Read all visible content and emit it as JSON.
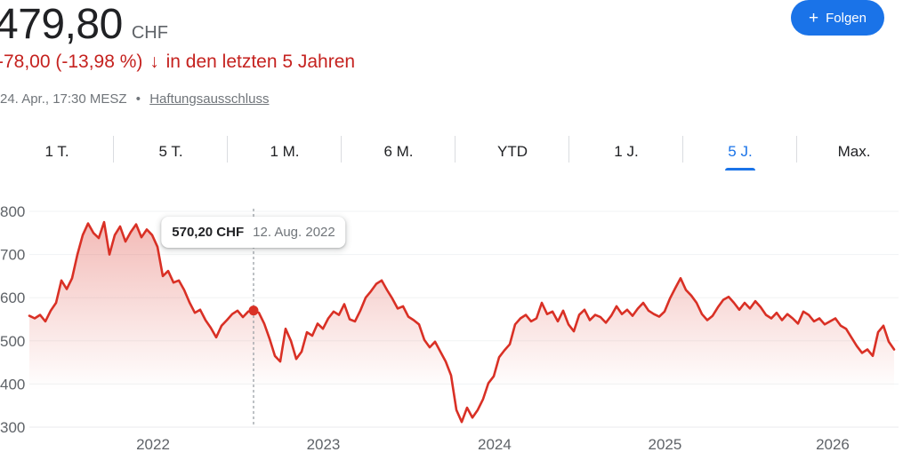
{
  "header": {
    "price": "479,80",
    "currency": "CHF",
    "change_text": "-78,00 (-13,98 %)",
    "change_arrow": "↓",
    "change_suffix": "in den letzten 5 Jahren",
    "date_line": "24. Apr., 17:30 MESZ",
    "separator": "•",
    "disclaimer": "Haftungsausschluss",
    "follow_button": {
      "icon": "+",
      "label": "Folgen"
    },
    "accent_color": "#1a73e8",
    "negative_color": "#c5221f"
  },
  "tabs": [
    {
      "label": "1 T.",
      "selected": false
    },
    {
      "label": "5 T.",
      "selected": false
    },
    {
      "label": "1 M.",
      "selected": false
    },
    {
      "label": "6 M.",
      "selected": false
    },
    {
      "label": "YTD",
      "selected": false
    },
    {
      "label": "1 J.",
      "selected": false
    },
    {
      "label": "5 J.",
      "selected": true
    },
    {
      "label": "Max.",
      "selected": false
    }
  ],
  "tooltip": {
    "price": "570,20 CHF",
    "date": "12. Aug. 2022"
  },
  "chart_data": {
    "type": "area",
    "title": "",
    "xlabel": "",
    "ylabel": "CHF",
    "ylim": [
      300,
      800
    ],
    "y_ticks": [
      300,
      400,
      500,
      600,
      700,
      800
    ],
    "x_ticks": [
      {
        "label": "2022",
        "pos": 0.143
      },
      {
        "label": "2023",
        "pos": 0.34
      },
      {
        "label": "2024",
        "pos": 0.538
      },
      {
        "label": "2025",
        "pos": 0.735
      },
      {
        "label": "2026",
        "pos": 0.929
      }
    ],
    "grid": true,
    "legend": "none",
    "line_color": "#d93025",
    "marker": {
      "index": 42,
      "value": 570.2,
      "price_label": "570,20 CHF",
      "date_label": "12. Aug. 2022"
    },
    "values": [
      558,
      552,
      560,
      545,
      570,
      588,
      640,
      620,
      645,
      700,
      745,
      772,
      750,
      738,
      775,
      700,
      745,
      765,
      730,
      752,
      770,
      740,
      758,
      745,
      718,
      650,
      662,
      635,
      640,
      618,
      589,
      565,
      572,
      548,
      530,
      508,
      535,
      548,
      562,
      570,
      555,
      568,
      570.2,
      565,
      540,
      505,
      465,
      452,
      528,
      500,
      458,
      475,
      520,
      512,
      540,
      528,
      552,
      568,
      560,
      585,
      550,
      545,
      570,
      600,
      615,
      632,
      640,
      618,
      598,
      575,
      580,
      556,
      548,
      538,
      502,
      485,
      498,
      475,
      452,
      420,
      340,
      312,
      345,
      322,
      340,
      365,
      402,
      418,
      462,
      478,
      492,
      538,
      552,
      560,
      545,
      552,
      588,
      562,
      568,
      545,
      570,
      538,
      522,
      560,
      572,
      548,
      560,
      555,
      542,
      558,
      580,
      562,
      572,
      558,
      575,
      588,
      570,
      562,
      556,
      568,
      598,
      622,
      645,
      618,
      605,
      588,
      562,
      548,
      558,
      578,
      595,
      602,
      588,
      572,
      588,
      575,
      592,
      578,
      560,
      552,
      565,
      548,
      562,
      552,
      540,
      568,
      560,
      545,
      552,
      538,
      545,
      552,
      535,
      528,
      508,
      488,
      472,
      480,
      465,
      520,
      535,
      498,
      480
    ]
  }
}
